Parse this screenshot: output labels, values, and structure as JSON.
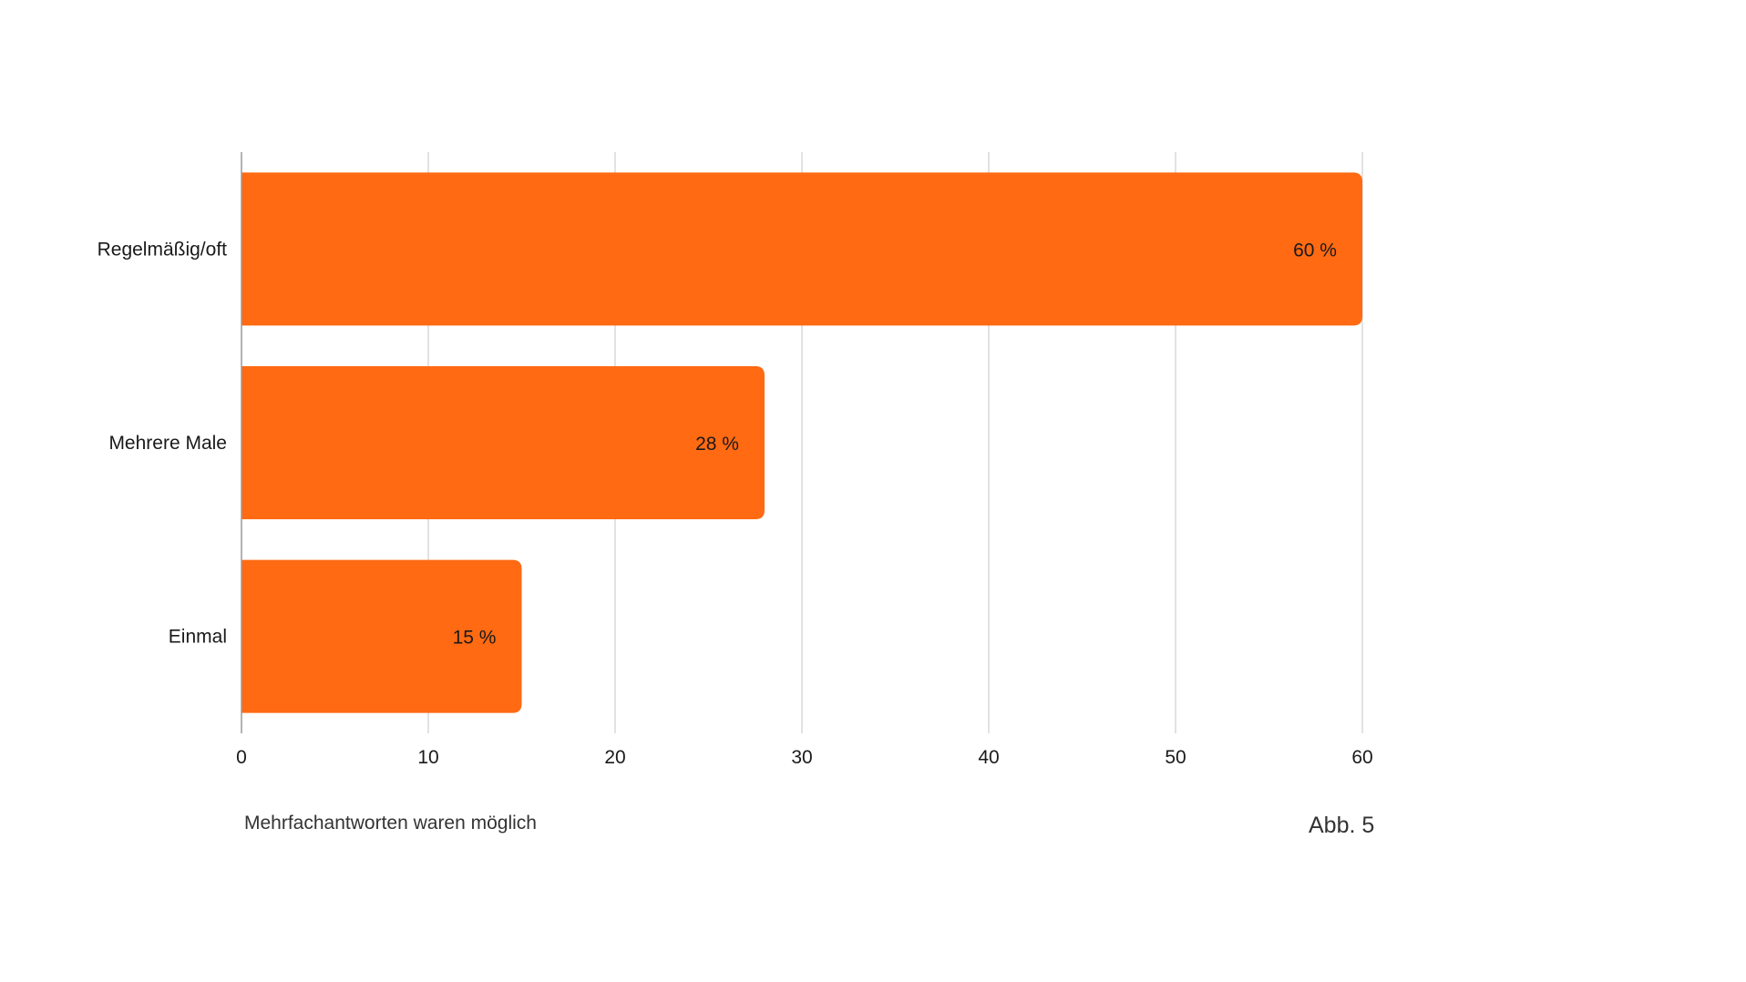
{
  "chart_data": {
    "type": "bar",
    "orientation": "horizontal",
    "categories": [
      "Regelmäßig/oft",
      "Mehrere Male",
      "Einmal"
    ],
    "values": [
      60,
      28,
      15
    ],
    "data_labels": [
      "60 %",
      "28 %",
      "15 %"
    ],
    "xlim": [
      0,
      60
    ],
    "x_ticks": [
      0,
      10,
      20,
      30,
      40,
      50,
      60
    ],
    "x_tick_labels": [
      "0",
      "10",
      "20",
      "30",
      "40",
      "50",
      "60"
    ],
    "grid": true,
    "bar_color": "#ff6a13",
    "grid_color": "#d9d9d9"
  },
  "footnote": "Mehrfachantworten waren möglich",
  "figure_ref": "Abb. 5"
}
